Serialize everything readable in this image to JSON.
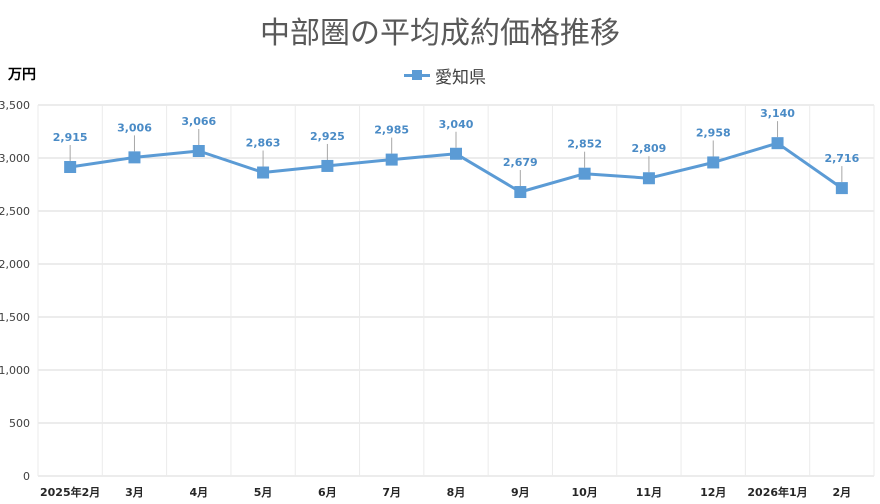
{
  "chart_data": {
    "type": "line",
    "title": "中部圏の平均成約価格推移",
    "ylabel": "万円",
    "xlabel": "",
    "categories": [
      "2025年2月",
      "3月",
      "4月",
      "5月",
      "6月",
      "7月",
      "8月",
      "9月",
      "10月",
      "11月",
      "12月",
      "2026年1月",
      "2月"
    ],
    "series": [
      {
        "name": "愛知県",
        "values": [
          2915,
          3006,
          3066,
          2863,
          2925,
          2985,
          3040,
          2679,
          2852,
          2809,
          2958,
          3140,
          2716
        ],
        "value_labels": [
          "2,915",
          "3,006",
          "3,066",
          "2,863",
          "2,925",
          "2,985",
          "3,040",
          "2,679",
          "2,852",
          "2,809",
          "2,958",
          "3,140",
          "2,716"
        ]
      }
    ],
    "ylim": [
      0,
      3500
    ],
    "yticks": [
      0,
      500,
      1000,
      1500,
      2000,
      2500,
      3000,
      3500
    ],
    "ytick_labels": [
      "0",
      "500",
      "1,000",
      "1,500",
      "2,000",
      "2,500",
      "3,000",
      "3,500"
    ],
    "grid": true,
    "legend_position": "top-center",
    "colors": {
      "series": "#5B9BD5",
      "data_label": "#4A8BC6",
      "grid": "#D9D9D9"
    }
  }
}
